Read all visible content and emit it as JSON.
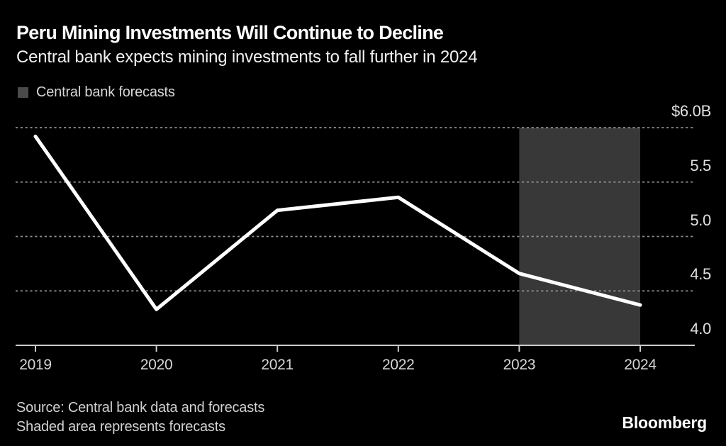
{
  "header": {
    "title": "Peru Mining Investments Will Continue to Decline",
    "subtitle": "Central bank expects mining investments to fall further in 2024"
  },
  "legend": {
    "label": "Central bank forecasts",
    "swatch_color": "#4a4a4a"
  },
  "footer": {
    "source_line1": "Source: Central bank data and forecasts",
    "source_line2": "Shaded area represents forecasts",
    "brand": "Bloomberg"
  },
  "chart_data": {
    "type": "line",
    "title": "Peru Mining Investments Will Continue to Decline",
    "subtitle": "Central bank expects mining investments to fall further in 2024",
    "categories": [
      "2019",
      "2020",
      "2021",
      "2022",
      "2023",
      "2024"
    ],
    "series": [
      {
        "name": "Peru mining investments",
        "values": [
          5.92,
          4.33,
          5.24,
          5.36,
          4.66,
          4.37
        ]
      }
    ],
    "unit": "US$ billions",
    "ylabel": "",
    "xlabel": "",
    "ylim": [
      4.0,
      6.0
    ],
    "yticks": [
      4.0,
      4.5,
      5.0,
      5.5,
      6.0
    ],
    "ytick_labels": [
      "4.0",
      "4.5",
      "5.0",
      "5.5",
      "$6.0B"
    ],
    "grid": "horizontal-dashed",
    "grid_color": "#8f8f8f",
    "axis_color": "#cccccc",
    "line_color": "#ffffff",
    "background": "#000000",
    "legend_position": "top-left",
    "forecast_region": {
      "from": "2023",
      "to": "2024",
      "label": "Central bank forecasts",
      "fill": "#383838"
    }
  }
}
